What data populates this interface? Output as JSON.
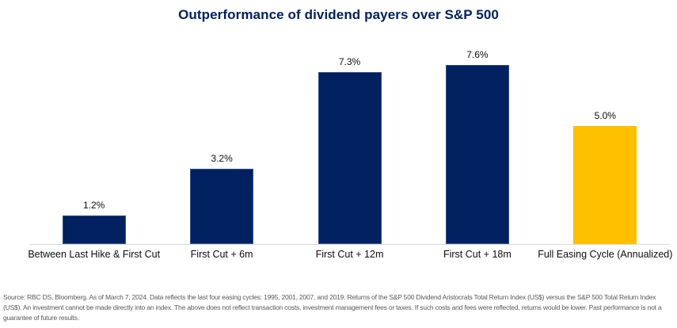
{
  "page": {
    "footnote": "Source: RBC DS, Bloomberg. As of March 7, 2024. Data reflects the last four easing cycles: 1995, 2001, 2007, and 2019. Returns of the S&P 500 Dividend Aristocrats Total Return Index (US$) versus the S&P 500 Total Return Index (US$). An investment cannot be made directly into an index. The above does not reflect transaction costs, investment management fees or taxes. If such costs and fees were reflected, returns would be lower. Past performance is not a guarantee of future results."
  },
  "colors": {
    "navy": "#002060",
    "navy_edge": "#33508f",
    "gold": "#FFC000",
    "title": "#002060",
    "axis_line": "#d9d9d9",
    "data_label": "#0d0d0d",
    "footnote": "#595959"
  },
  "chart_data": {
    "type": "bar",
    "title": "Outperformance of dividend payers over S&P 500",
    "categories": [
      "Between Last Hike & First Cut",
      "First Cut + 6m",
      "First Cut + 12m",
      "First Cut + 18m",
      "Full Easing Cycle (Annualized)"
    ],
    "values": [
      1.2,
      3.2,
      7.3,
      7.6,
      5.0
    ],
    "data_labels": [
      "1.2%",
      "3.2%",
      "7.3%",
      "7.6%",
      "5.0%"
    ],
    "bar_colors": [
      "#002060",
      "#002060",
      "#002060",
      "#002060",
      "#FFC000"
    ],
    "xlabel": "",
    "ylabel": "",
    "ylim": [
      0,
      8
    ],
    "grid": false,
    "legend": "none",
    "value_labels_position": "above-bars"
  }
}
